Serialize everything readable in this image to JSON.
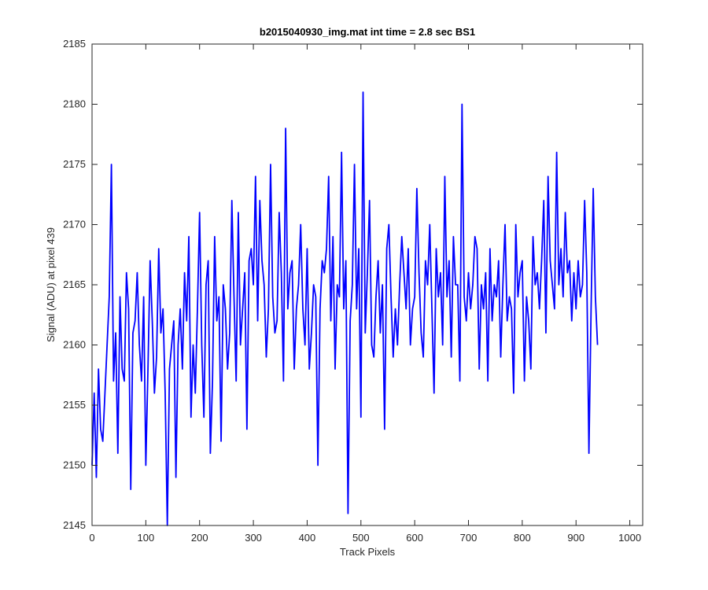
{
  "chart_data": {
    "type": "line",
    "title": "b2015040930_img.mat int time = 2.8 sec   BS1",
    "xlabel": "Track Pixels",
    "ylabel": "Signal (ADU) at pixel 439",
    "xlim": [
      0,
      1024
    ],
    "ylim": [
      2145,
      2185
    ],
    "xticks": [
      0,
      100,
      200,
      300,
      400,
      500,
      600,
      700,
      800,
      900,
      1000
    ],
    "yticks": [
      2145,
      2150,
      2155,
      2160,
      2165,
      2170,
      2175,
      2180,
      2185
    ],
    "grid": false,
    "series": [
      {
        "name": "signal",
        "color": "#0000ff",
        "x_start": 0,
        "x_step": 4,
        "values": [
          2150,
          2156,
          2149,
          2158,
          2153,
          2152,
          2156,
          2160,
          2164,
          2175,
          2157,
          2161,
          2151,
          2164,
          2158,
          2157,
          2166,
          2163,
          2148,
          2161,
          2162,
          2166,
          2160,
          2157,
          2164,
          2150,
          2158,
          2167,
          2162,
          2156,
          2159,
          2168,
          2161,
          2163,
          2156,
          2145,
          2158,
          2160,
          2162,
          2149,
          2160,
          2163,
          2158,
          2166,
          2162,
          2169,
          2154,
          2160,
          2156,
          2163,
          2171,
          2160,
          2154,
          2165,
          2167,
          2151,
          2157,
          2169,
          2162,
          2164,
          2152,
          2165,
          2163,
          2158,
          2161,
          2172,
          2164,
          2157,
          2171,
          2160,
          2163,
          2166,
          2153,
          2167,
          2168,
          2165,
          2174,
          2162,
          2172,
          2167,
          2165,
          2159,
          2163,
          2175,
          2164,
          2161,
          2162,
          2171,
          2166,
          2157,
          2178,
          2163,
          2166,
          2167,
          2158,
          2163,
          2165,
          2170,
          2163,
          2160,
          2168,
          2158,
          2161,
          2165,
          2164,
          2150,
          2163,
          2167,
          2166,
          2168,
          2174,
          2162,
          2169,
          2158,
          2165,
          2164,
          2176,
          2163,
          2167,
          2146,
          2162,
          2165,
          2175,
          2163,
          2168,
          2154,
          2181,
          2161,
          2166,
          2172,
          2160,
          2159,
          2164,
          2167,
          2161,
          2165,
          2153,
          2168,
          2170,
          2164,
          2159,
          2163,
          2160,
          2165,
          2169,
          2166,
          2163,
          2168,
          2160,
          2163,
          2164,
          2173,
          2166,
          2161,
          2159,
          2167,
          2165,
          2170,
          2163,
          2156,
          2168,
          2164,
          2166,
          2160,
          2174,
          2164,
          2167,
          2159,
          2169,
          2165,
          2165,
          2157,
          2180,
          2164,
          2162,
          2166,
          2163,
          2165,
          2169,
          2168,
          2158,
          2165,
          2163,
          2166,
          2157,
          2168,
          2162,
          2165,
          2164,
          2167,
          2159,
          2165,
          2170,
          2162,
          2164,
          2163,
          2156,
          2170,
          2164,
          2166,
          2167,
          2157,
          2164,
          2162,
          2158,
          2169,
          2165,
          2166,
          2163,
          2167,
          2172,
          2161,
          2174,
          2167,
          2165,
          2163,
          2176,
          2165,
          2168,
          2164,
          2171,
          2166,
          2167,
          2162,
          2166,
          2163,
          2167,
          2164,
          2165,
          2172,
          2166,
          2151,
          2163,
          2173,
          2164,
          2160
        ]
      }
    ]
  }
}
